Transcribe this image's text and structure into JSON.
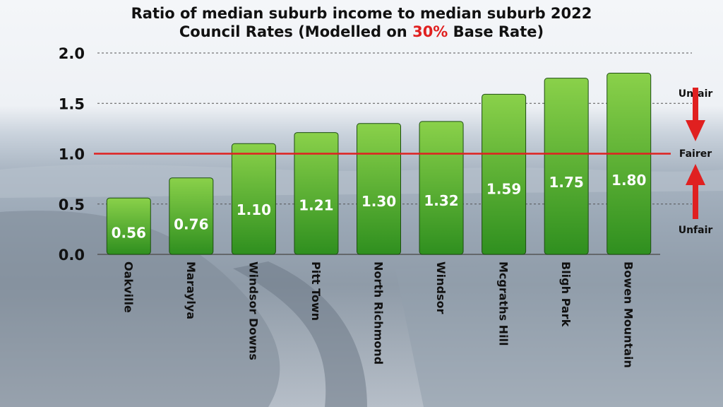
{
  "title_part1": "Ratio of median suburb income to median suburb 2022",
  "title_part2_prefix": "Council Rates (Modelled on ",
  "title_accent": "30%",
  "title_part2_suffix": " Base Rate)",
  "colors": {
    "bar_top": "#8ad14a",
    "bar_bottom": "#2f8f1f",
    "reference_line": "#e02020",
    "arrow": "#e02020"
  },
  "annotations": {
    "top": "Unfair",
    "middle": "Fairer",
    "bottom": "Unfair"
  },
  "chart_data": {
    "type": "bar",
    "categories": [
      "Oakville",
      "Maraylya",
      "Windsor Downs",
      "Pitt Town",
      "North Richmond",
      "Windsor",
      "Mcgraths Hill",
      "Bligh Park",
      "Bowen Mountain"
    ],
    "values": [
      0.56,
      0.76,
      1.1,
      1.21,
      1.3,
      1.32,
      1.59,
      1.75,
      1.8
    ],
    "value_labels": [
      "0.56",
      "0.76",
      "1.10",
      "1.21",
      "1.30",
      "1.32",
      "1.59",
      "1.75",
      "1.80"
    ],
    "yticks": [
      "0.0",
      "0.5",
      "1.0",
      "1.5",
      "2.0"
    ],
    "ylim": [
      0,
      2.0
    ],
    "reference_line": 1.0,
    "grid": true
  }
}
